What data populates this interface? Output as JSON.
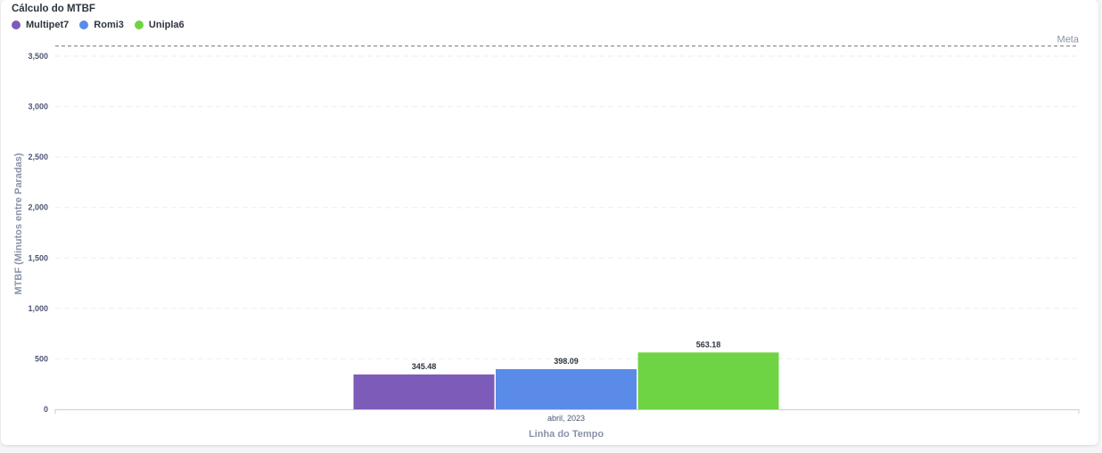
{
  "chart_data": {
    "type": "bar",
    "title": "Cálculo do MTBF",
    "categories": [
      "abril, 2023"
    ],
    "series": [
      {
        "name": "Multipet7",
        "values": [
          345.48
        ],
        "color": "#7c5cb8"
      },
      {
        "name": "Romi3",
        "values": [
          398.09
        ],
        "color": "#5b8be8"
      },
      {
        "name": "Unipla6",
        "values": [
          563.18
        ],
        "color": "#6fd443"
      }
    ],
    "data_labels": [
      "345.48",
      "398.09",
      "563.18"
    ],
    "xlabel": "Linha do Tempo",
    "ylabel": "MTBF (Minutos entre Paradas)",
    "ylim": [
      0,
      3500
    ],
    "yticks": [
      0,
      500,
      1000,
      1500,
      2000,
      2500,
      3000,
      3500
    ],
    "ytick_labels": [
      "0",
      "500",
      "1,000",
      "1,500",
      "2,000",
      "2,500",
      "3,000",
      "3,500"
    ],
    "goal_line": {
      "label": "Meta",
      "value": 3600
    },
    "grid": true,
    "legend_position": "top-left"
  }
}
